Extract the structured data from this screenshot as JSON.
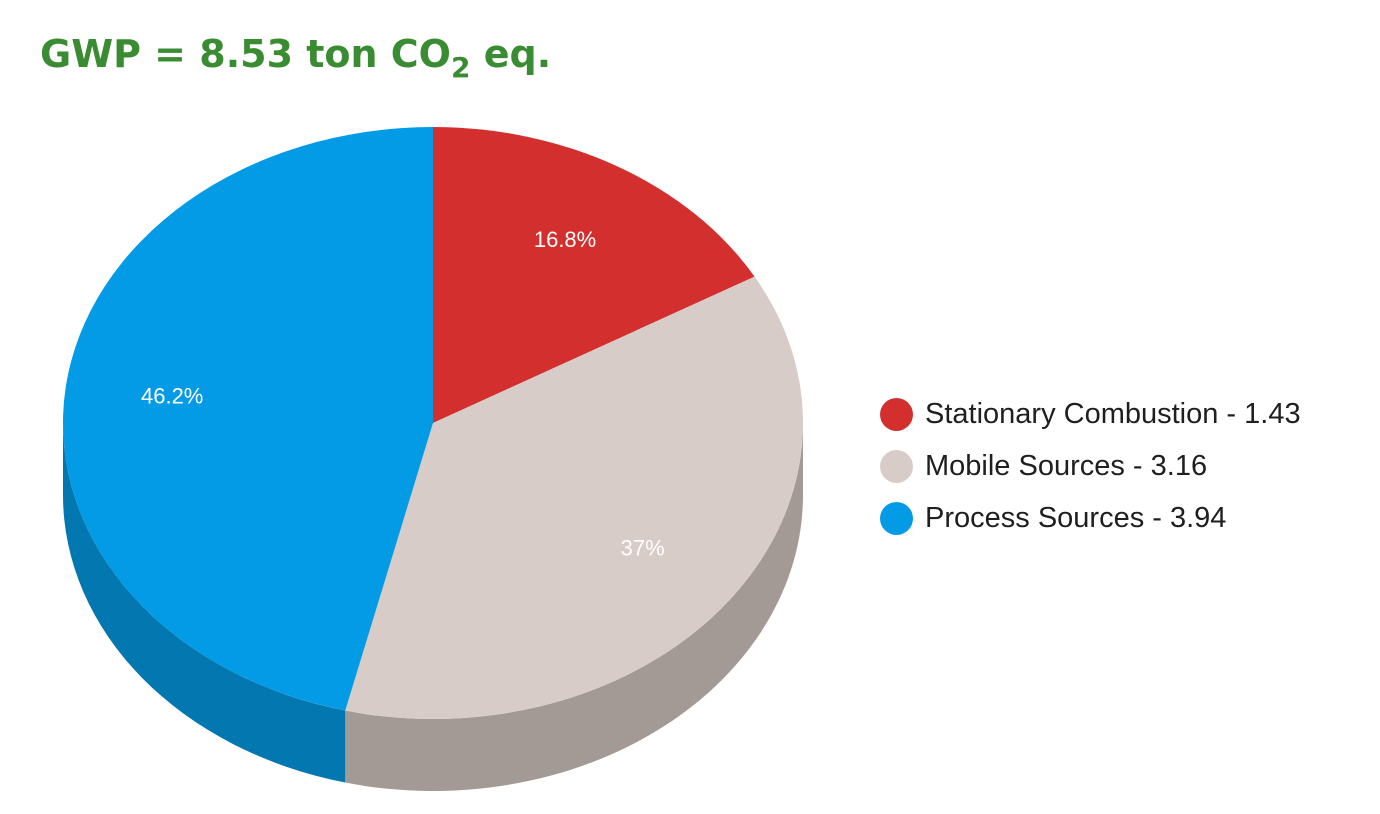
{
  "title": {
    "prefix": "GWP = 8.53 ton CO",
    "subscript": "2",
    "suffix": " eq."
  },
  "chart_data": {
    "type": "pie",
    "style": "3d",
    "legend_position": "right",
    "slices": [
      {
        "name": "Stationary Combustion",
        "value": 1.43,
        "legend_label": "Stationary Combustion - 1.43",
        "percent_label": "16.8%",
        "color": "#d32f2f",
        "side_color": "#a82424"
      },
      {
        "name": "Mobile Sources",
        "value": 3.16,
        "legend_label": "Mobile Sources - 3.16",
        "percent_label": "37%",
        "color": "#d7ccc8",
        "side_color": "#a39a96"
      },
      {
        "name": "Process Sources",
        "value": 3.94,
        "legend_label": "Process Sources - 3.94",
        "percent_label": "46.2%",
        "color": "#039be5",
        "side_color": "#0277b0"
      }
    ]
  }
}
